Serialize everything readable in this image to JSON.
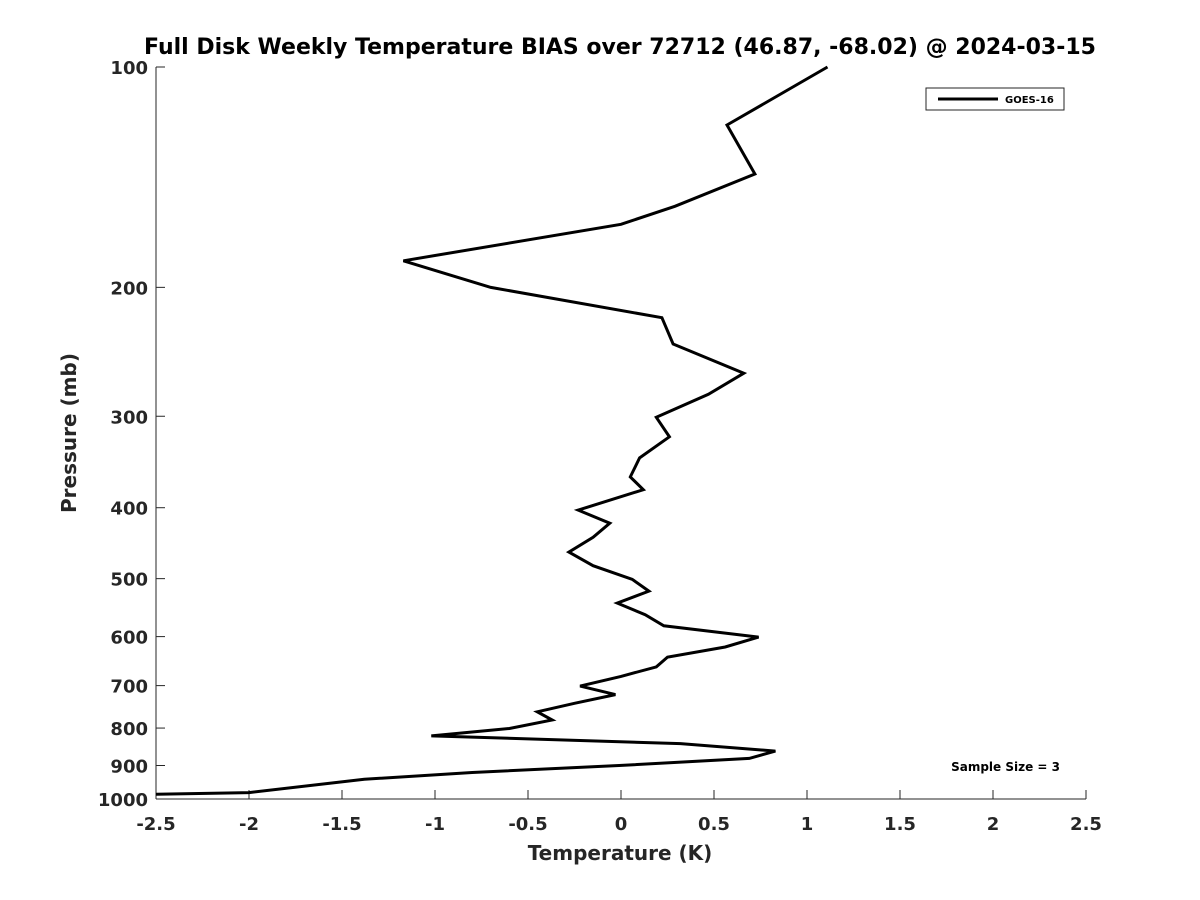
{
  "chart_data": {
    "type": "line",
    "title": "Full Disk Weekly Temperature BIAS over 72712 (46.87, -68.02) @ 2024-03-15",
    "xlabel": "Temperature (K)",
    "ylabel": "Pressure (mb)",
    "xlim": [
      -2.5,
      2.5
    ],
    "ylim": [
      100,
      1000
    ],
    "y_scale": "log",
    "y_reversed": true,
    "grid": false,
    "x_ticks": [
      "-2.5",
      "-2",
      "-1.5",
      "-1",
      "-0.5",
      "0",
      "0.5",
      "1",
      "1.5",
      "2",
      "2.5"
    ],
    "x_tick_values": [
      -2.5,
      -2,
      -1.5,
      -1,
      -0.5,
      0,
      0.5,
      1,
      1.5,
      2,
      2.5
    ],
    "y_ticks": [
      "100",
      "200",
      "300",
      "400",
      "500",
      "600",
      "700",
      "800",
      "900",
      "1000"
    ],
    "y_tick_values": [
      100,
      200,
      300,
      400,
      500,
      600,
      700,
      800,
      900,
      1000
    ],
    "legend_position": "top-right",
    "line_color": "#000000",
    "series": [
      {
        "name": "GOES-16",
        "points": [
          {
            "x": 1.11,
            "p": 100
          },
          {
            "x": 0.57,
            "p": 120
          },
          {
            "x": 0.72,
            "p": 140
          },
          {
            "x": 0.29,
            "p": 155
          },
          {
            "x": 0.0,
            "p": 164
          },
          {
            "x": -1.17,
            "p": 184
          },
          {
            "x": -0.7,
            "p": 200
          },
          {
            "x": 0.22,
            "p": 220
          },
          {
            "x": 0.28,
            "p": 239
          },
          {
            "x": 0.66,
            "p": 262
          },
          {
            "x": 0.47,
            "p": 280
          },
          {
            "x": 0.19,
            "p": 301
          },
          {
            "x": 0.26,
            "p": 320
          },
          {
            "x": 0.1,
            "p": 342
          },
          {
            "x": 0.05,
            "p": 363
          },
          {
            "x": 0.12,
            "p": 378
          },
          {
            "x": -0.23,
            "p": 403
          },
          {
            "x": -0.06,
            "p": 420
          },
          {
            "x": -0.15,
            "p": 439
          },
          {
            "x": -0.28,
            "p": 460
          },
          {
            "x": -0.15,
            "p": 480
          },
          {
            "x": 0.06,
            "p": 501
          },
          {
            "x": 0.15,
            "p": 520
          },
          {
            "x": -0.02,
            "p": 540
          },
          {
            "x": 0.13,
            "p": 560
          },
          {
            "x": 0.23,
            "p": 580
          },
          {
            "x": 0.74,
            "p": 601
          },
          {
            "x": 0.56,
            "p": 620
          },
          {
            "x": 0.25,
            "p": 640
          },
          {
            "x": 0.19,
            "p": 660
          },
          {
            "x": 0.0,
            "p": 680
          },
          {
            "x": -0.22,
            "p": 701
          },
          {
            "x": -0.03,
            "p": 720
          },
          {
            "x": -0.25,
            "p": 740
          },
          {
            "x": -0.45,
            "p": 760
          },
          {
            "x": -0.37,
            "p": 780
          },
          {
            "x": -0.6,
            "p": 801
          },
          {
            "x": -1.02,
            "p": 820
          },
          {
            "x": 0.32,
            "p": 840
          },
          {
            "x": 0.83,
            "p": 860
          },
          {
            "x": 0.69,
            "p": 880
          },
          {
            "x": -0.01,
            "p": 900
          },
          {
            "x": -0.8,
            "p": 920
          },
          {
            "x": -1.38,
            "p": 940
          },
          {
            "x": -2.0,
            "p": 980
          },
          {
            "x": -2.5,
            "p": 985
          }
        ]
      }
    ],
    "annotations": [
      {
        "text": "Sample Size = 3",
        "position": "bottom-right"
      }
    ]
  }
}
